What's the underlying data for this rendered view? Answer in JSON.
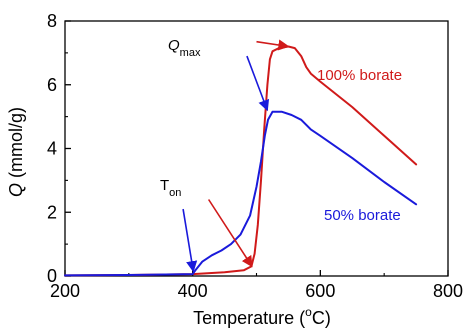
{
  "chart_data": {
    "type": "line",
    "xlabel_prefix": "Temperature (",
    "xlabel_deg": "o",
    "xlabel_suffix": "C)",
    "ylabel_var": "Q",
    "ylabel_unit": " (mmol/g)",
    "xlim": [
      200,
      800
    ],
    "ylim": [
      0,
      8
    ],
    "x_ticks": [
      200,
      400,
      600,
      800
    ],
    "y_ticks": [
      0,
      2,
      4,
      6,
      8
    ],
    "grid": false,
    "colors": {
      "red": "#d01a1a",
      "blue": "#1a1adb"
    },
    "series": [
      {
        "name": "100% borate",
        "color": "#d01a1a",
        "points": [
          [
            200,
            0.02
          ],
          [
            300,
            0.03
          ],
          [
            400,
            0.06
          ],
          [
            450,
            0.12
          ],
          [
            480,
            0.18
          ],
          [
            492,
            0.3
          ],
          [
            497,
            0.7
          ],
          [
            502,
            1.6
          ],
          [
            507,
            3.0
          ],
          [
            512,
            4.6
          ],
          [
            517,
            6.0
          ],
          [
            521,
            6.8
          ],
          [
            525,
            7.05
          ],
          [
            535,
            7.15
          ],
          [
            550,
            7.2
          ],
          [
            560,
            7.15
          ],
          [
            570,
            6.9
          ],
          [
            578,
            6.55
          ],
          [
            585,
            6.35
          ],
          [
            600,
            6.1
          ],
          [
            650,
            5.3
          ],
          [
            700,
            4.4
          ],
          [
            750,
            3.5
          ]
        ]
      },
      {
        "name": "50% borate",
        "color": "#1a1adb",
        "points": [
          [
            200,
            0.02
          ],
          [
            300,
            0.03
          ],
          [
            400,
            0.06
          ],
          [
            405,
            0.2
          ],
          [
            415,
            0.45
          ],
          [
            430,
            0.65
          ],
          [
            445,
            0.8
          ],
          [
            460,
            1.0
          ],
          [
            475,
            1.3
          ],
          [
            490,
            1.9
          ],
          [
            500,
            2.8
          ],
          [
            507,
            3.6
          ],
          [
            513,
            4.4
          ],
          [
            518,
            4.9
          ],
          [
            525,
            5.15
          ],
          [
            540,
            5.15
          ],
          [
            555,
            5.05
          ],
          [
            570,
            4.9
          ],
          [
            585,
            4.6
          ],
          [
            600,
            4.4
          ],
          [
            650,
            3.7
          ],
          [
            700,
            2.95
          ],
          [
            750,
            2.25
          ]
        ]
      }
    ],
    "annotations": {
      "qmax_main": "Q",
      "qmax_sub": "max",
      "ton_main": "T",
      "ton_sub": "on",
      "label_100": "100% borate",
      "label_50": "50% borate"
    },
    "annotation_arrows": [
      {
        "target": "100% borate peak",
        "color": "#d01a1a",
        "from": [
          500,
          7.35
        ],
        "to": [
          550,
          7.2
        ]
      },
      {
        "target": "50% borate peak",
        "color": "#1a1adb",
        "from": [
          485,
          6.9
        ],
        "to": [
          517,
          5.2
        ]
      },
      {
        "target": "50% borate onset",
        "color": "#1a1adb",
        "from": [
          385,
          2.1
        ],
        "to": [
          401,
          0.15
        ]
      },
      {
        "target": "100% borate onset",
        "color": "#d01a1a",
        "from": [
          425,
          2.4
        ],
        "to": [
          493,
          0.3
        ]
      }
    ]
  }
}
